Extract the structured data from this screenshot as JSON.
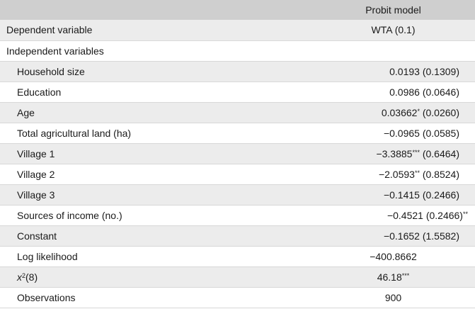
{
  "header": {
    "col1": "",
    "col2": "Probit model"
  },
  "rows": [
    {
      "label": "Dependent variable",
      "value": "WTA (0.1)",
      "stars": "",
      "value_after": "",
      "stars_after": ""
    },
    {
      "label": "Independent variables",
      "value": "",
      "stars": "",
      "value_after": "",
      "stars_after": ""
    },
    {
      "label": "Household size",
      "value": "0.0193",
      "stars": "",
      "value_after": "(0.1309)",
      "stars_after": ""
    },
    {
      "label": "Education",
      "value": "0.0986",
      "stars": "",
      "value_after": "(0.0646)",
      "stars_after": ""
    },
    {
      "label": "Age",
      "value": "0.03662",
      "stars": "*",
      "value_after": "(0.0260)",
      "stars_after": ""
    },
    {
      "label": "Total agricultural land (ha)",
      "value": "−0.0965",
      "stars": "",
      "value_after": "(0.0585)",
      "stars_after": ""
    },
    {
      "label": "Village 1",
      "value": "−3.3885",
      "stars": "***",
      "value_after": "(0.6464)",
      "stars_after": ""
    },
    {
      "label": "Village 2",
      "value": "−2.0593",
      "stars": "**",
      "value_after": "(0.8524)",
      "stars_after": ""
    },
    {
      "label": "Village 3",
      "value": "−0.1415",
      "stars": "",
      "value_after": "(0.2466)",
      "stars_after": ""
    },
    {
      "label": "Sources of income (no.)",
      "value": "−0.4521",
      "stars": "",
      "value_after": "(0.2466)",
      "stars_after": "**"
    },
    {
      "label": "Constant",
      "value": "−0.1652",
      "stars": "",
      "value_after": "(1.5582)",
      "stars_after": ""
    },
    {
      "label": "Log likelihood",
      "value": "−400.8662",
      "stars": "",
      "value_after": "",
      "stars_after": ""
    },
    {
      "label_var": "x",
      "label_sup": "2",
      "label_rest": "(8)",
      "value": "46.18",
      "stars": "***",
      "value_after": "",
      "stars_after": ""
    },
    {
      "label": "Observations",
      "value": "900",
      "stars": "",
      "value_after": "",
      "stars_after": ""
    }
  ]
}
